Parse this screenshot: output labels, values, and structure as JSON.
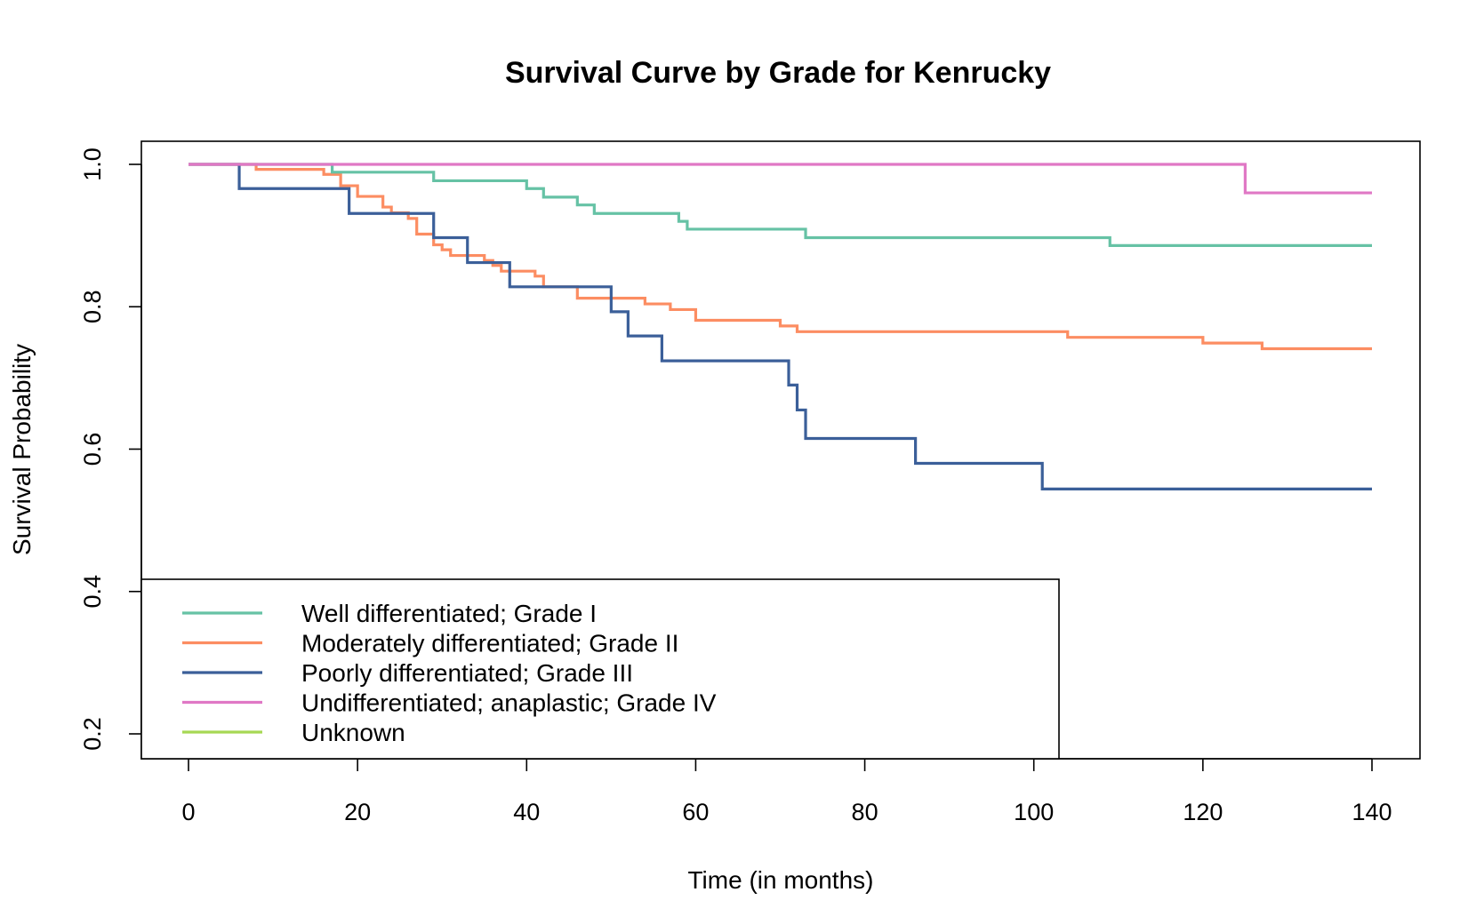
{
  "chart_data": {
    "type": "line",
    "step": true,
    "title": "Survival Curve by Grade for Kenrucky",
    "xlabel": "Time (in months)",
    "ylabel": "Survival Probability",
    "xlim": [
      0,
      140
    ],
    "ylim": [
      0.2,
      1.0
    ],
    "x_ticks": [
      "0",
      "20",
      "40",
      "60",
      "80",
      "100",
      "120",
      "140"
    ],
    "y_ticks": [
      "0.2",
      "0.4",
      "0.6",
      "0.8",
      "1.0"
    ],
    "grid": false,
    "legend_position": "bottom-left",
    "series": [
      {
        "name": "Well differentiated; Grade I",
        "color": "#66C2A5",
        "x": [
          0,
          17,
          29,
          40,
          42,
          46,
          48,
          58,
          59,
          73,
          109,
          140
        ],
        "y": [
          1.0,
          0.989,
          0.977,
          0.966,
          0.954,
          0.943,
          0.931,
          0.92,
          0.909,
          0.897,
          0.886,
          0.886
        ]
      },
      {
        "name": "Moderately differentiated; Grade II",
        "color": "#FC8D62",
        "x": [
          0,
          8,
          16,
          18,
          20,
          23,
          24,
          26,
          27,
          29,
          30,
          31,
          33,
          35,
          36,
          37,
          38,
          41,
          42,
          46,
          54,
          57,
          60,
          70,
          72,
          104,
          120,
          127,
          140
        ],
        "y": [
          1.0,
          0.993,
          0.986,
          0.97,
          0.955,
          0.94,
          0.932,
          0.924,
          0.902,
          0.887,
          0.88,
          0.872,
          0.872,
          0.865,
          0.858,
          0.85,
          0.85,
          0.843,
          0.828,
          0.812,
          0.804,
          0.796,
          0.781,
          0.773,
          0.765,
          0.757,
          0.749,
          0.741,
          0.741
        ]
      },
      {
        "name": "Poorly differentiated; Grade III",
        "color": "#3B5F99",
        "x": [
          0,
          6,
          19,
          29,
          33,
          38,
          50,
          52,
          56,
          71,
          72,
          73,
          86,
          101,
          140
        ],
        "y": [
          1.0,
          0.966,
          0.931,
          0.897,
          0.862,
          0.828,
          0.793,
          0.759,
          0.724,
          0.69,
          0.655,
          0.615,
          0.58,
          0.544,
          0.544
        ]
      },
      {
        "name": "Undifferentiated; anaplastic; Grade IV",
        "color": "#E078C5",
        "x": [
          0,
          125,
          140
        ],
        "y": [
          1.0,
          0.96,
          0.96
        ]
      },
      {
        "name": "Unknown",
        "color": "#A6D854",
        "x": [],
        "y": []
      }
    ]
  }
}
